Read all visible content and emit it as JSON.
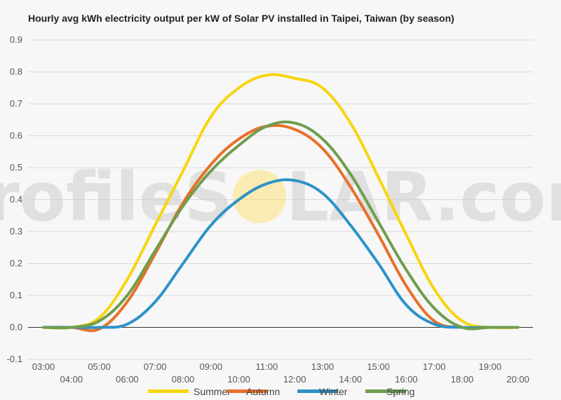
{
  "watermark": {
    "text_left": "profileS",
    "text_right": "LAR.com",
    "sun_color": "#fde27a"
  },
  "chart_data": {
    "type": "line",
    "title": "Hourly avg kWh electricity output per kW of Solar PV installed in Taipei, Taiwan (by season)",
    "xlabel": "",
    "ylabel": "",
    "ylim": [
      -0.1,
      0.9
    ],
    "yticks": [
      -0.1,
      0.0,
      0.1,
      0.2,
      0.3,
      0.4,
      0.5,
      0.6,
      0.7,
      0.8,
      0.9
    ],
    "ytick_labels": [
      "-0.1",
      "0.0",
      "0.1",
      "0.2",
      "0.3",
      "0.4",
      "0.5",
      "0.6",
      "0.7",
      "0.8",
      "0.9"
    ],
    "x": [
      "03:00",
      "04:00",
      "05:00",
      "06:00",
      "07:00",
      "08:00",
      "09:00",
      "10:00",
      "11:00",
      "12:00",
      "13:00",
      "14:00",
      "15:00",
      "16:00",
      "17:00",
      "18:00",
      "19:00",
      "20:00"
    ],
    "grid": true,
    "legend_position": "bottom",
    "series": [
      {
        "name": "Summer",
        "color": "#f6d610",
        "values": [
          0.0,
          0.0,
          0.03,
          0.15,
          0.32,
          0.49,
          0.66,
          0.75,
          0.79,
          0.78,
          0.75,
          0.64,
          0.47,
          0.29,
          0.12,
          0.02,
          0.0,
          0.0
        ]
      },
      {
        "name": "Autumn",
        "color": "#e8702a",
        "values": [
          0.0,
          0.0,
          -0.005,
          0.08,
          0.23,
          0.39,
          0.51,
          0.59,
          0.63,
          0.62,
          0.56,
          0.44,
          0.29,
          0.13,
          0.02,
          0.0,
          0.0,
          0.0
        ]
      },
      {
        "name": "Winter",
        "color": "#2e93c7",
        "values": [
          0.0,
          0.0,
          0.0,
          0.01,
          0.08,
          0.2,
          0.32,
          0.4,
          0.45,
          0.46,
          0.42,
          0.32,
          0.2,
          0.07,
          0.01,
          0.0,
          0.0,
          0.0
        ]
      },
      {
        "name": "Spring",
        "color": "#6f9e4e",
        "values": [
          0.0,
          0.0,
          0.02,
          0.1,
          0.24,
          0.38,
          0.49,
          0.57,
          0.63,
          0.64,
          0.59,
          0.48,
          0.33,
          0.18,
          0.06,
          0.0,
          0.0,
          0.0
        ]
      }
    ]
  }
}
